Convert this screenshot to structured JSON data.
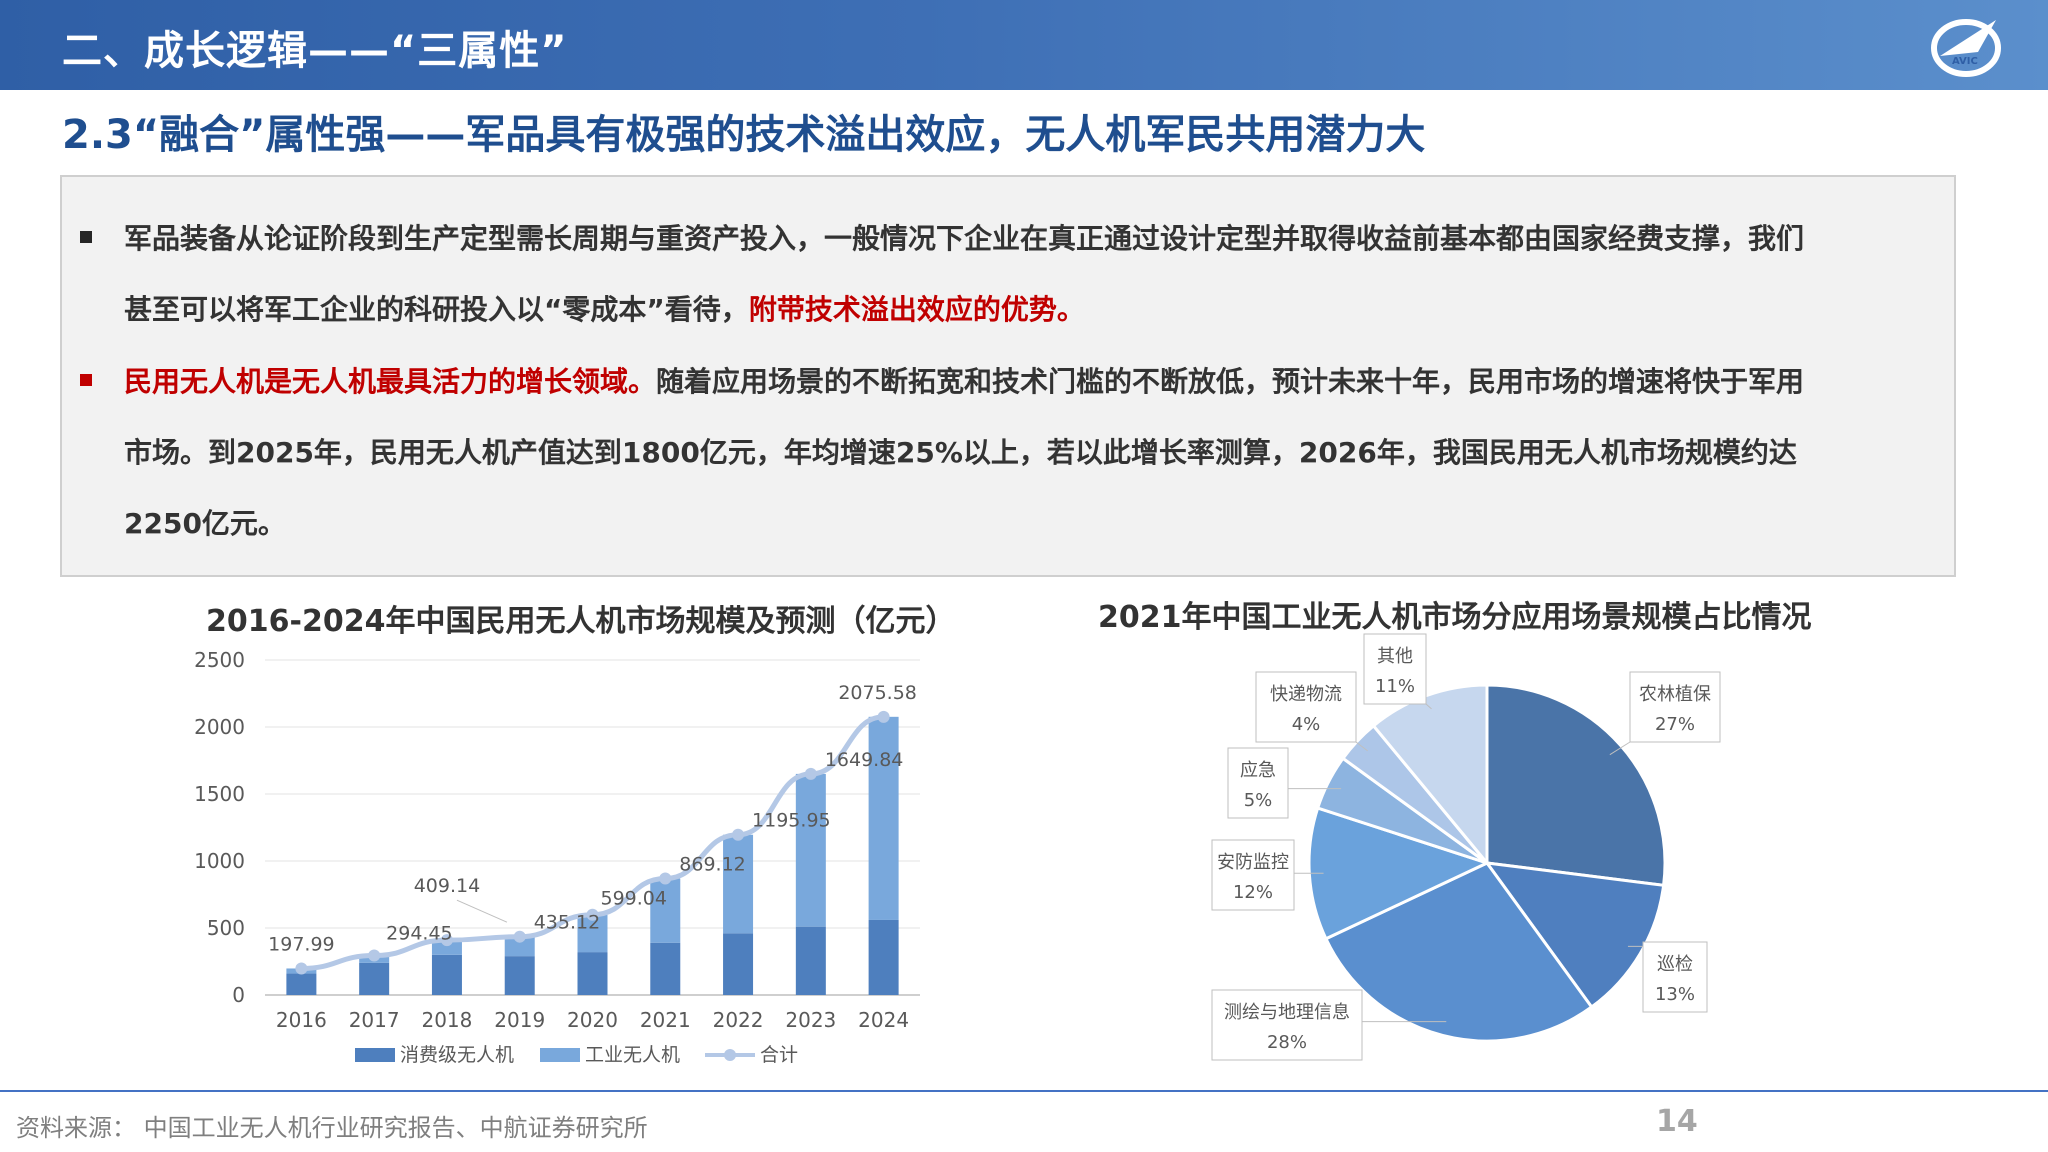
{
  "header": {
    "section_title": "二、成长逻辑——“三属性”",
    "subtitle": "2.3“融合”属性强——军品具有极强的技术溢出效应，无人机军民共用潜力大",
    "logo_text": "AVIC"
  },
  "body": {
    "p1_text": "军品装备从论证阶段到生产定型需长周期与重资产投入，一般情况下企业在真正通过设计定型并取得收益前基本都由国家经费支撑，我们",
    "p1_text2": "甚至可以将军工企业的科研投入以“零成本”看待，",
    "p1_highlight": "附带技术溢出效应的优势。",
    "p2_highlight": "民用无人机是无人机最具活力的增长领域。",
    "p2_text": "随着应用场景的不断拓宽和技术门槛的不断放低，预计未来十年，民用市场的增速将快于军用",
    "p2_text2": "市场。到2025年，民用无人机产值达到1800亿元，年均增速25%以上，若以此增长率测算，2026年，我国民用无人机市场规模约达",
    "p2_text3": "2250亿元。"
  },
  "chart_data": [
    {
      "type": "bar",
      "title": "2016-2024年中国民用无人机市场规模及预测（亿元）",
      "categories": [
        "2016",
        "2017",
        "2018",
        "2019",
        "2020",
        "2021",
        "2022",
        "2023",
        "2024"
      ],
      "series": [
        {
          "name": "消费级无人机",
          "values": [
            160,
            240,
            300,
            290,
            320,
            390,
            460,
            510,
            560
          ]
        },
        {
          "name": "工业无人机",
          "values": [
            38,
            54,
            109,
            145,
            279,
            479,
            736,
            1140,
            1516
          ]
        },
        {
          "name": "合计",
          "values": [
            197.99,
            294.45,
            409.14,
            435.12,
            599.04,
            869.12,
            1195.95,
            1649.84,
            2075.58
          ]
        }
      ],
      "data_labels": [
        "197.99",
        "294.45",
        "409.14",
        "435.12",
        "599.04",
        "869.12",
        "1195.95",
        "1649.84",
        "2075.58"
      ],
      "yticks": [
        "0",
        "500",
        "1000",
        "1500",
        "2000",
        "2500"
      ],
      "ylim": [
        0,
        2500
      ],
      "legend_position": "bottom",
      "colors": [
        "#4e7fbe",
        "#79a8dc",
        "#b4c8e6"
      ]
    },
    {
      "type": "pie",
      "title": "2021年中国工业无人机市场分应用场景规模占比情况",
      "slices": [
        {
          "label": "农林植保",
          "value": 27,
          "pct": "27%",
          "color": "#4a74a8"
        },
        {
          "label": "巡检",
          "value": 13,
          "pct": "13%",
          "color": "#4f7fbf"
        },
        {
          "label": "测绘与地理信息",
          "value": 28,
          "pct": "28%",
          "color": "#5a8fcf"
        },
        {
          "label": "安防监控",
          "value": 12,
          "pct": "12%",
          "color": "#6aa2dc"
        },
        {
          "label": "应急",
          "value": 5,
          "pct": "5%",
          "color": "#8db4e0"
        },
        {
          "label": "快递物流",
          "value": 4,
          "pct": "4%",
          "color": "#adc6e8"
        },
        {
          "label": "其他",
          "value": 11,
          "pct": "11%",
          "color": "#c6d7ee"
        }
      ]
    }
  ],
  "footer": {
    "source": "资料来源：  中国工业无人机行业研究报告、中航证券研究所",
    "page": "14"
  }
}
